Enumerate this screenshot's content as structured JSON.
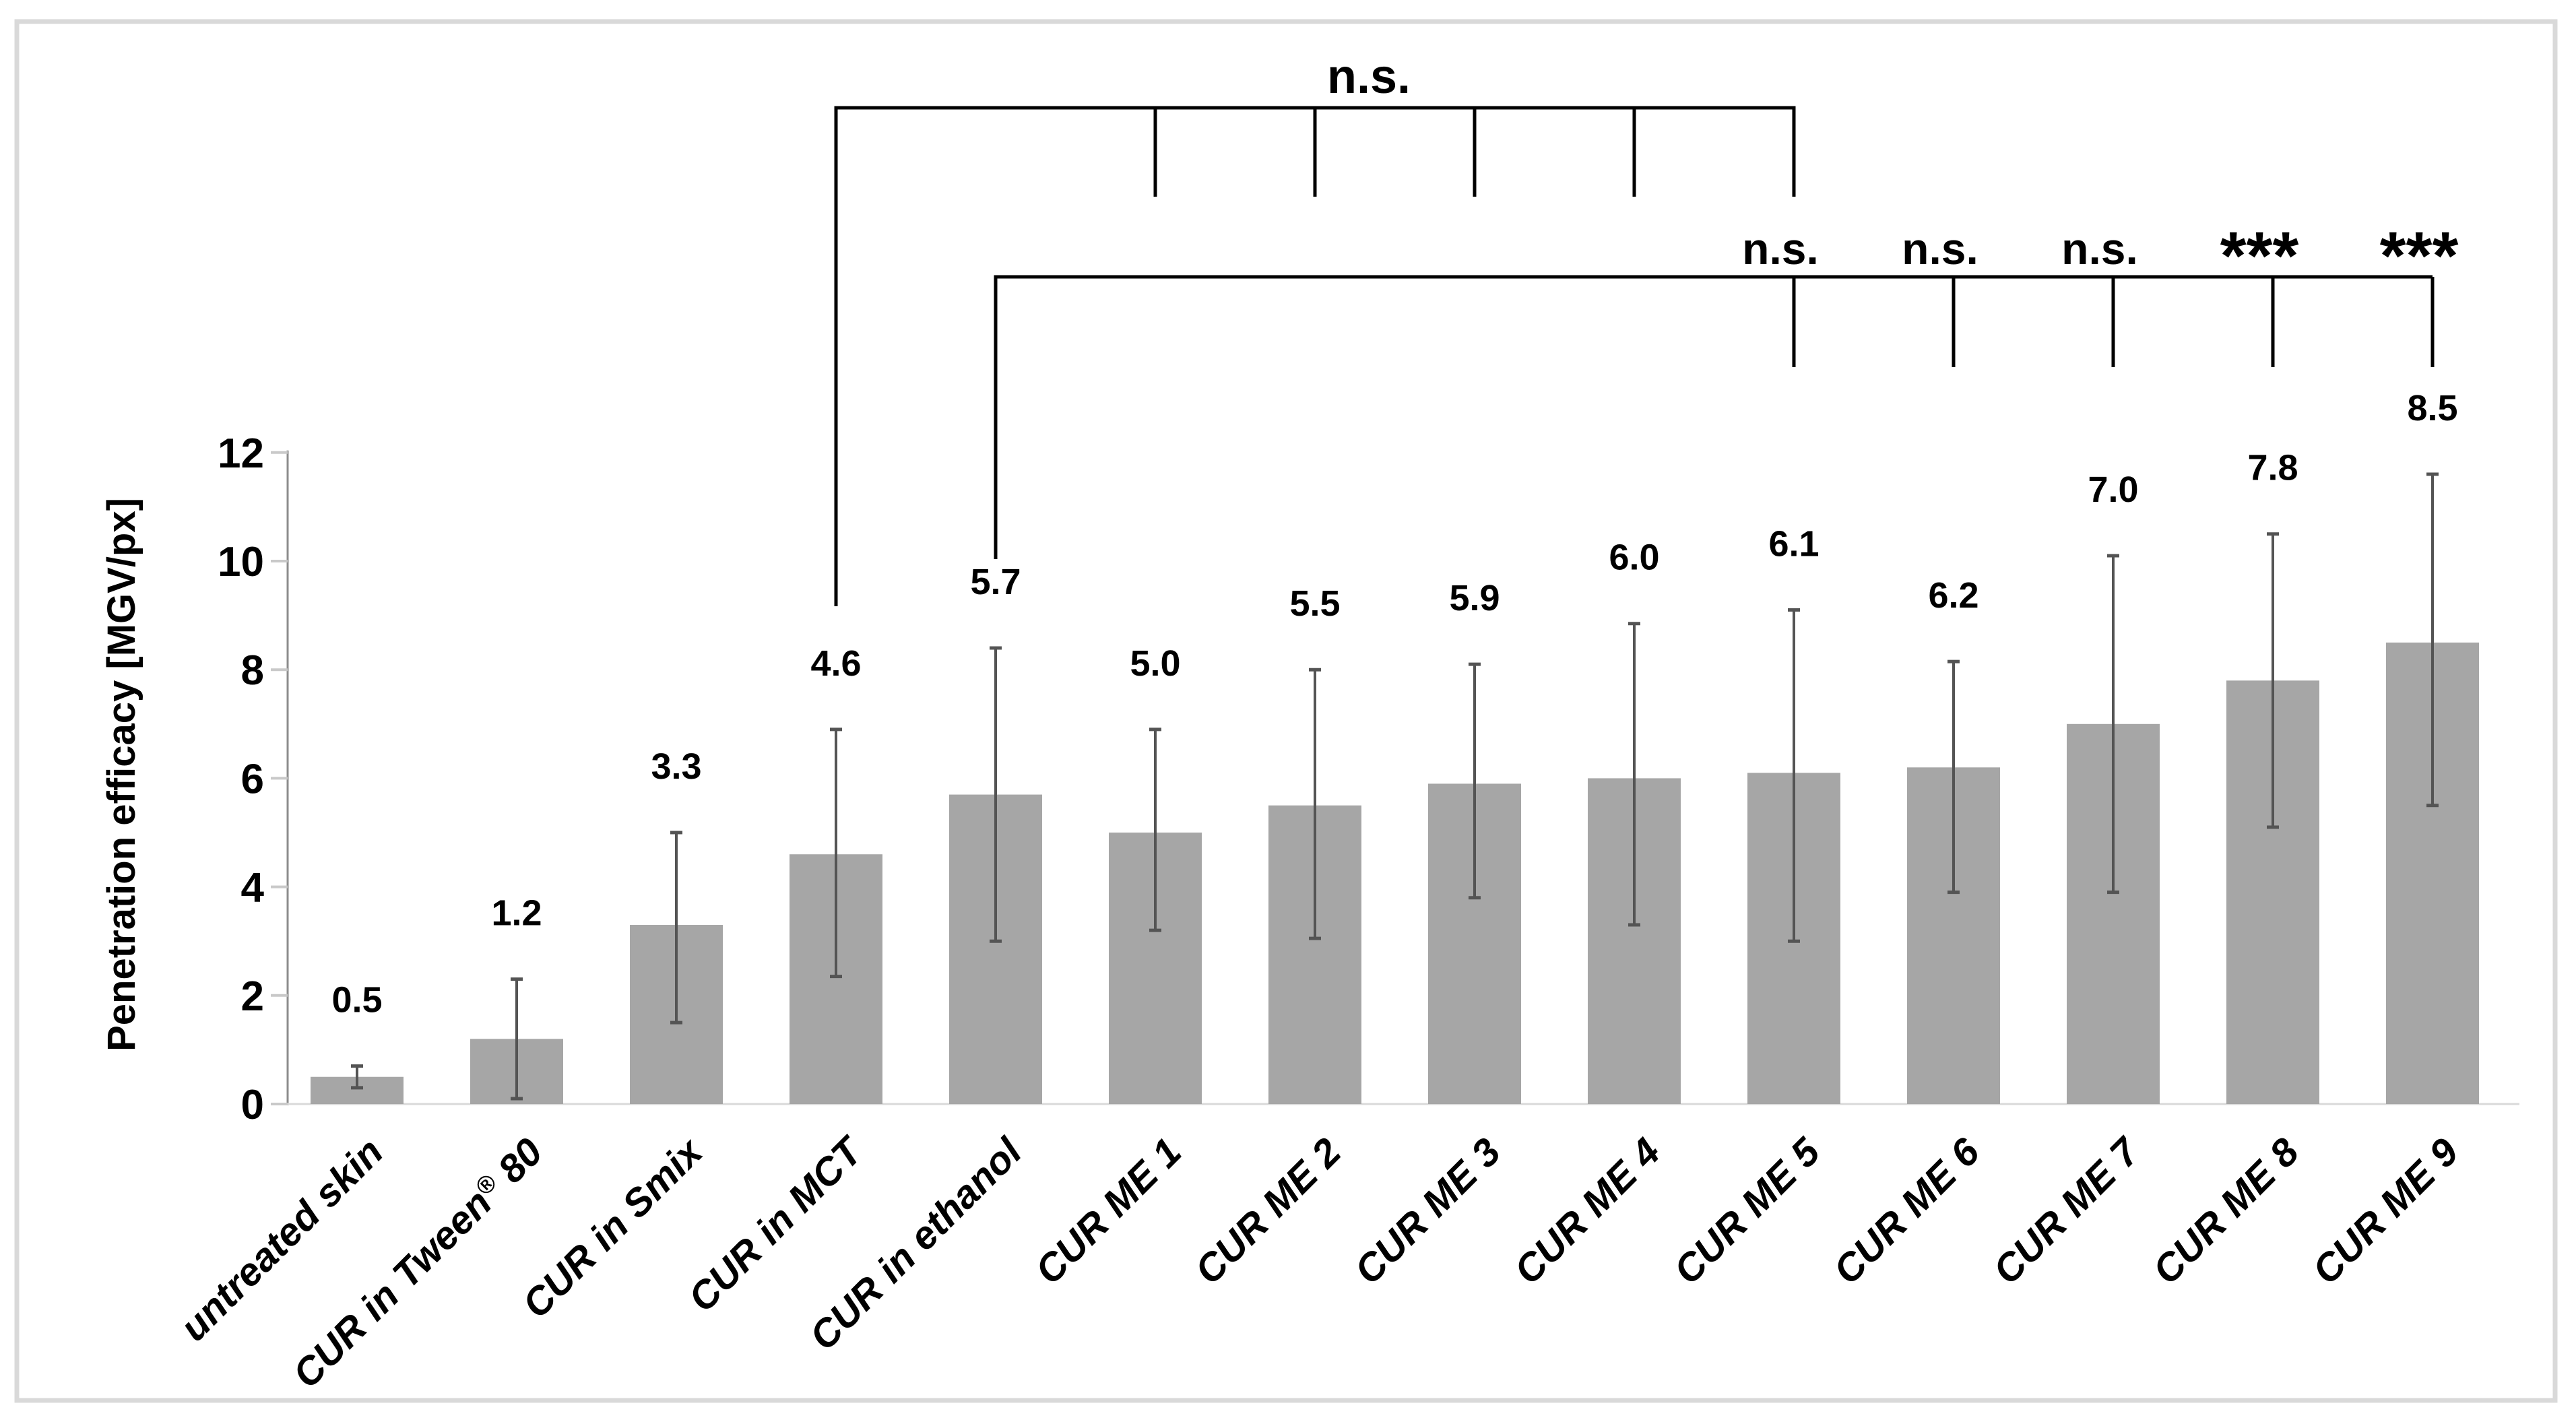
{
  "figure": {
    "background": "#ffffff",
    "border_color": "#d9d9d9"
  },
  "y_axis": {
    "title": "Penetration efficacy [MGV/px]",
    "tick_labels": [
      "0",
      "2",
      "4",
      "6",
      "8",
      "10",
      "12"
    ]
  },
  "chart_data": {
    "type": "bar",
    "title": "",
    "xlabel": "",
    "ylabel": "Penetration efficacy [MGV/px]",
    "ylim": [
      0,
      12
    ],
    "yticks": [
      0,
      2,
      4,
      6,
      8,
      10,
      12
    ],
    "grid": "off",
    "legend": "none",
    "bar_color": "#a6a6a6",
    "error_bar_color": "#545454",
    "axis_line_color": "#8c8c8c",
    "tick_mark_color": "#c9c9c9",
    "baseline_color": "#d9d9d9",
    "bracket_color": "#000000",
    "categories": [
      "untreated skin",
      "CUR in Tween® 80",
      "CUR in Smix",
      "CUR in MCT",
      "CUR in ethanol",
      "CUR ME 1",
      "CUR ME 2",
      "CUR ME 3",
      "CUR ME 4",
      "CUR ME 5",
      "CUR ME 6",
      "CUR ME 7",
      "CUR ME 8",
      "CUR ME 9"
    ],
    "values": [
      0.5,
      1.2,
      3.3,
      4.6,
      5.7,
      5.0,
      5.5,
      5.9,
      6.0,
      6.1,
      6.2,
      7.0,
      7.8,
      8.5
    ],
    "value_labels": [
      "0.5",
      "1.2",
      "3.3",
      "4.6",
      "5.7",
      "5.0",
      "5.5",
      "5.9",
      "6.0",
      "6.1",
      "6.2",
      "7.0",
      "7.8",
      "8.5"
    ],
    "error_plus": [
      0.2,
      1.1,
      1.7,
      2.3,
      2.7,
      1.9,
      2.5,
      2.2,
      2.85,
      3.0,
      1.95,
      3.1,
      2.7,
      3.1
    ],
    "error_minus": [
      0.2,
      1.1,
      1.8,
      2.25,
      2.7,
      1.8,
      2.45,
      2.1,
      2.7,
      3.1,
      2.3,
      3.1,
      2.7,
      3.0
    ],
    "significance_brackets": [
      {
        "row": 1,
        "label": "n.s.",
        "from": "CUR in MCT",
        "to": "CUR ME 5",
        "tick_marks": [
          "CUR ME 1",
          "CUR ME 2",
          "CUR ME 3",
          "CUR ME 4"
        ]
      },
      {
        "row": 2,
        "from": "CUR in ethanol",
        "to": "CUR ME 9",
        "drop_labels": [
          {
            "category": "CUR ME 5",
            "label": "n.s."
          },
          {
            "category": "CUR ME 6",
            "label": "n.s."
          },
          {
            "category": "CUR ME 7",
            "label": "n.s."
          },
          {
            "category": "CUR ME 8",
            "label": "***"
          },
          {
            "category": "CUR ME 9",
            "label": "***"
          }
        ]
      }
    ]
  }
}
